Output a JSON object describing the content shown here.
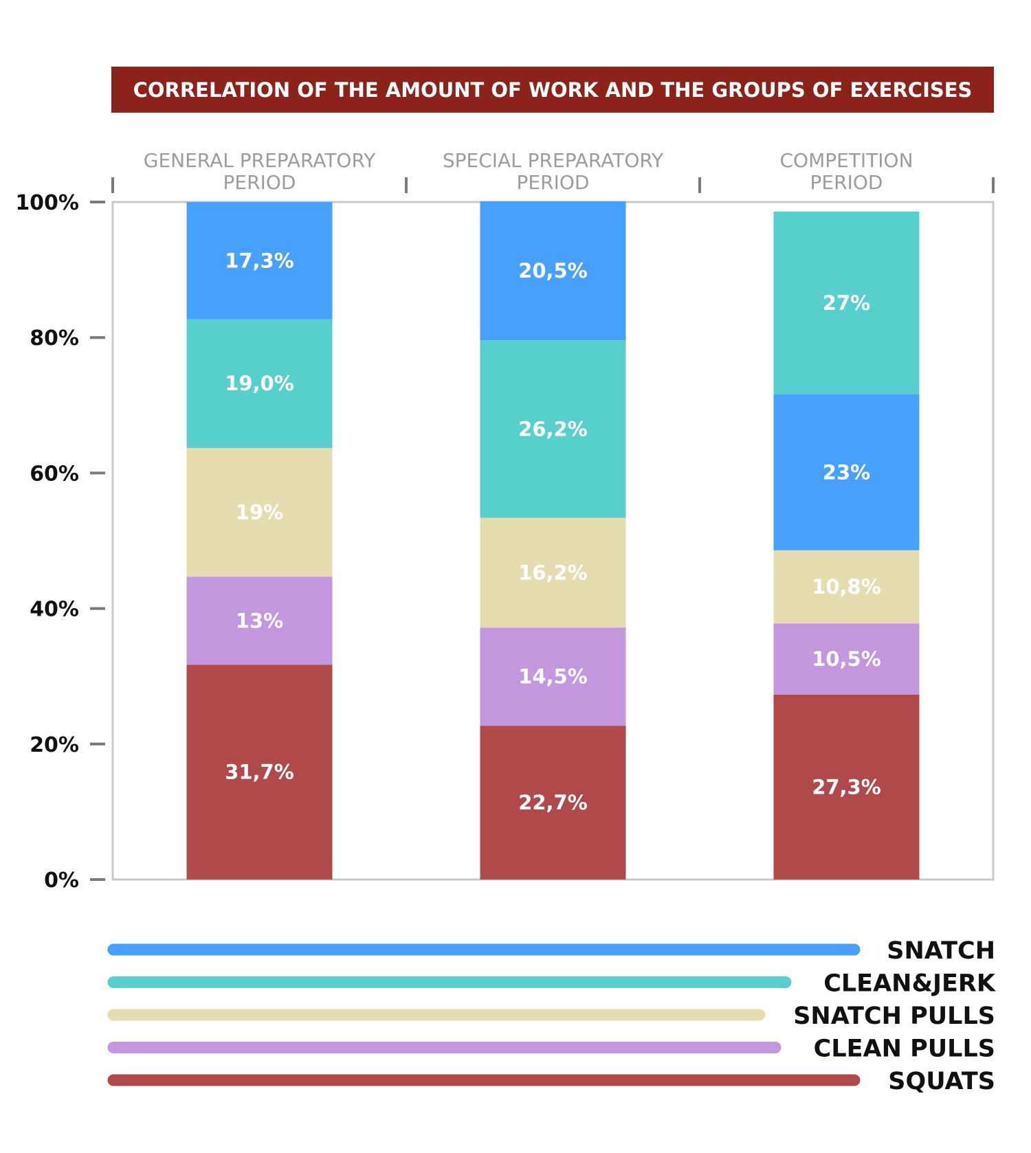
{
  "chart_data": {
    "type": "bar",
    "stacked": true,
    "title": "CORRELATION OF THE AMOUNT OF WORK AND THE GROUPS OF EXERCISES",
    "categories": [
      [
        "GENERAL PREPARATORY",
        "PERIOD"
      ],
      [
        "SPECIAL PREPARATORY",
        "PERIOD"
      ],
      [
        "COMPETITION",
        "PERIOD"
      ]
    ],
    "ylim": [
      0,
      100
    ],
    "yticks": [
      0,
      20,
      40,
      60,
      80,
      100
    ],
    "ytick_labels": [
      "0%",
      "20%",
      "40%",
      "60%",
      "80%",
      "100%"
    ],
    "colors": {
      "SNATCH": "#47a0fb",
      "CLEAN&JERK": "#56cfcd",
      "SNATCH PULLS": "#e5dcaf",
      "CLEAN PULLS": "#c397dd",
      "SQUATS": "#b04949"
    },
    "stacks": [
      [
        {
          "series": "SQUATS",
          "value": 31.7,
          "label": "31,7%"
        },
        {
          "series": "CLEAN PULLS",
          "value": 13,
          "label": "13%"
        },
        {
          "series": "SNATCH PULLS",
          "value": 19,
          "label": "19%"
        },
        {
          "series": "CLEAN&JERK",
          "value": 19.0,
          "label": "19,0%"
        },
        {
          "series": "SNATCH",
          "value": 17.3,
          "label": "17,3%"
        }
      ],
      [
        {
          "series": "SQUATS",
          "value": 22.7,
          "label": "22,7%"
        },
        {
          "series": "CLEAN PULLS",
          "value": 14.5,
          "label": "14,5%"
        },
        {
          "series": "SNATCH PULLS",
          "value": 16.2,
          "label": "16,2%"
        },
        {
          "series": "CLEAN&JERK",
          "value": 26.2,
          "label": "26,2%"
        },
        {
          "series": "SNATCH",
          "value": 20.5,
          "label": "20,5%"
        }
      ],
      [
        {
          "series": "SQUATS",
          "value": 27.3,
          "label": "27,3%"
        },
        {
          "series": "CLEAN PULLS",
          "value": 10.5,
          "label": "10,5%"
        },
        {
          "series": "SNATCH PULLS",
          "value": 10.8,
          "label": "10,8%"
        },
        {
          "series": "SNATCH",
          "value": 23,
          "label": "23%"
        },
        {
          "series": "CLEAN&JERK",
          "value": 27,
          "label": "27%"
        }
      ]
    ],
    "legend": [
      {
        "name": "SNATCH"
      },
      {
        "name": "CLEAN&JERK"
      },
      {
        "name": "SNATCH PULLS"
      },
      {
        "name": "CLEAN PULLS"
      },
      {
        "name": "SQUATS"
      }
    ]
  }
}
